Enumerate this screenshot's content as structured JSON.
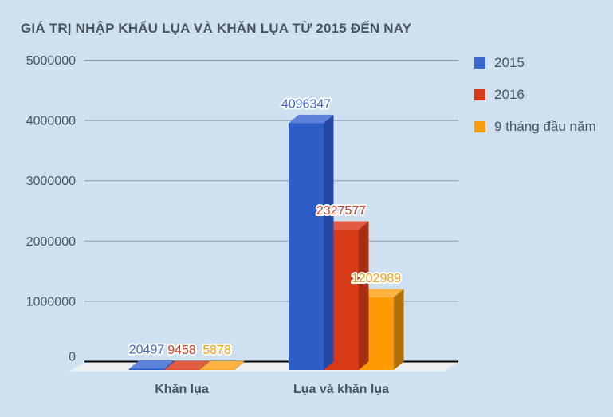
{
  "colors": {
    "background": "#cfe1f1",
    "title_text": "#49535c",
    "axis_text": "#4a5560",
    "gridline": "#8b9aa7",
    "axis_line": "#000000",
    "floor": "#edeff1",
    "label_halo": "#ffffff"
  },
  "chart_data": {
    "type": "bar",
    "subtype": "3d-column",
    "title": "GIÁ TRỊ NHẬP KHẨU LỤA VÀ KHĂN LỤA TỪ 2015 ĐẾN NAY",
    "categories": [
      "Khăn lụa",
      "Lụa và khăn lụa"
    ],
    "series": [
      {
        "name": "2015",
        "color": "#3c68d1",
        "front": "#2d5ec7",
        "top": "#5d82da",
        "side": "#2548a5",
        "values": [
          20497,
          4096347
        ]
      },
      {
        "name": "2016",
        "color": "#d43b1d",
        "front": "#d83a18",
        "top": "#e25c43",
        "side": "#a72e10",
        "values": [
          9458,
          2327577
        ]
      },
      {
        "name": "9 tháng đầu năm",
        "color": "#f99d0d",
        "front": "#fe9b03",
        "top": "#feb240",
        "side": "#b07005",
        "values": [
          5878,
          1202989
        ]
      }
    ],
    "y_ticks": [
      0,
      1000000,
      2000000,
      3000000,
      4000000,
      5000000
    ],
    "ylim": [
      0,
      5000000
    ],
    "xlabel": "",
    "ylabel": "",
    "grid": true,
    "legend_position": "right",
    "data_labels_shown": true
  }
}
